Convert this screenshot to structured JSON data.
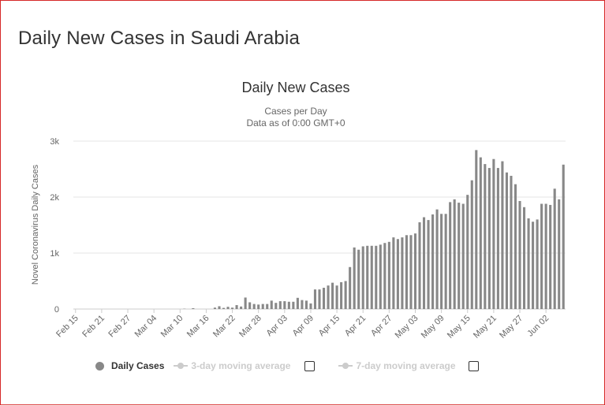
{
  "page_title": "Daily New Cases in Saudi Arabia",
  "colors": {
    "bar": "#888888",
    "grid": "#e6e6e6",
    "text": "#333333",
    "muted": "#666666",
    "border": "#d62828"
  },
  "legend": {
    "daily_cases": "Daily Cases",
    "avg3": "3-day moving average",
    "avg7": "7-day moving average"
  },
  "chart_data": {
    "type": "bar",
    "title": "Daily New Cases",
    "subtitle_line1": "Cases per Day",
    "subtitle_line2": "Data as of 0:00 GMT+0",
    "ylabel": "Novel Coronavirus Daily Cases",
    "xlabel": "",
    "ylim": [
      0,
      3000
    ],
    "yticks": [
      {
        "value": 0,
        "label": "0"
      },
      {
        "value": 1000,
        "label": "1k"
      },
      {
        "value": 2000,
        "label": "2k"
      },
      {
        "value": 3000,
        "label": "3k"
      }
    ],
    "xticks": [
      {
        "index": 0,
        "label": "Feb 15"
      },
      {
        "index": 6,
        "label": "Feb 21"
      },
      {
        "index": 12,
        "label": "Feb 27"
      },
      {
        "index": 18,
        "label": "Mar 04"
      },
      {
        "index": 24,
        "label": "Mar 10"
      },
      {
        "index": 30,
        "label": "Mar 16"
      },
      {
        "index": 36,
        "label": "Mar 22"
      },
      {
        "index": 42,
        "label": "Mar 28"
      },
      {
        "index": 48,
        "label": "Apr 03"
      },
      {
        "index": 54,
        "label": "Apr 09"
      },
      {
        "index": 60,
        "label": "Apr 15"
      },
      {
        "index": 66,
        "label": "Apr 21"
      },
      {
        "index": 72,
        "label": "Apr 27"
      },
      {
        "index": 78,
        "label": "May 03"
      },
      {
        "index": 84,
        "label": "May 09"
      },
      {
        "index": 90,
        "label": "May 15"
      },
      {
        "index": 96,
        "label": "May 21"
      },
      {
        "index": 102,
        "label": "May 27"
      },
      {
        "index": 108,
        "label": "Jun 02"
      }
    ],
    "start_date": "Feb 15",
    "values": [
      0,
      0,
      0,
      0,
      0,
      0,
      0,
      0,
      0,
      0,
      0,
      0,
      0,
      0,
      0,
      0,
      0,
      0,
      0,
      0,
      0,
      0,
      0,
      0,
      0,
      5,
      0,
      15,
      0,
      0,
      0,
      0,
      25,
      50,
      20,
      40,
      25,
      70,
      45,
      205,
      120,
      90,
      80,
      90,
      90,
      150,
      110,
      140,
      140,
      130,
      130,
      200,
      160,
      150,
      100,
      350,
      350,
      380,
      420,
      470,
      420,
      480,
      500,
      750,
      1100,
      1060,
      1120,
      1130,
      1130,
      1130,
      1150,
      1180,
      1200,
      1280,
      1250,
      1280,
      1320,
      1320,
      1350,
      1550,
      1640,
      1590,
      1690,
      1780,
      1700,
      1700,
      1910,
      1960,
      1900,
      1880,
      2040,
      2300,
      2840,
      2710,
      2590,
      2520,
      2680,
      2520,
      2640,
      2440,
      2380,
      2230,
      1930,
      1820,
      1620,
      1560,
      1600,
      1880,
      1880,
      1860,
      2150,
      1960,
      2580
    ]
  }
}
